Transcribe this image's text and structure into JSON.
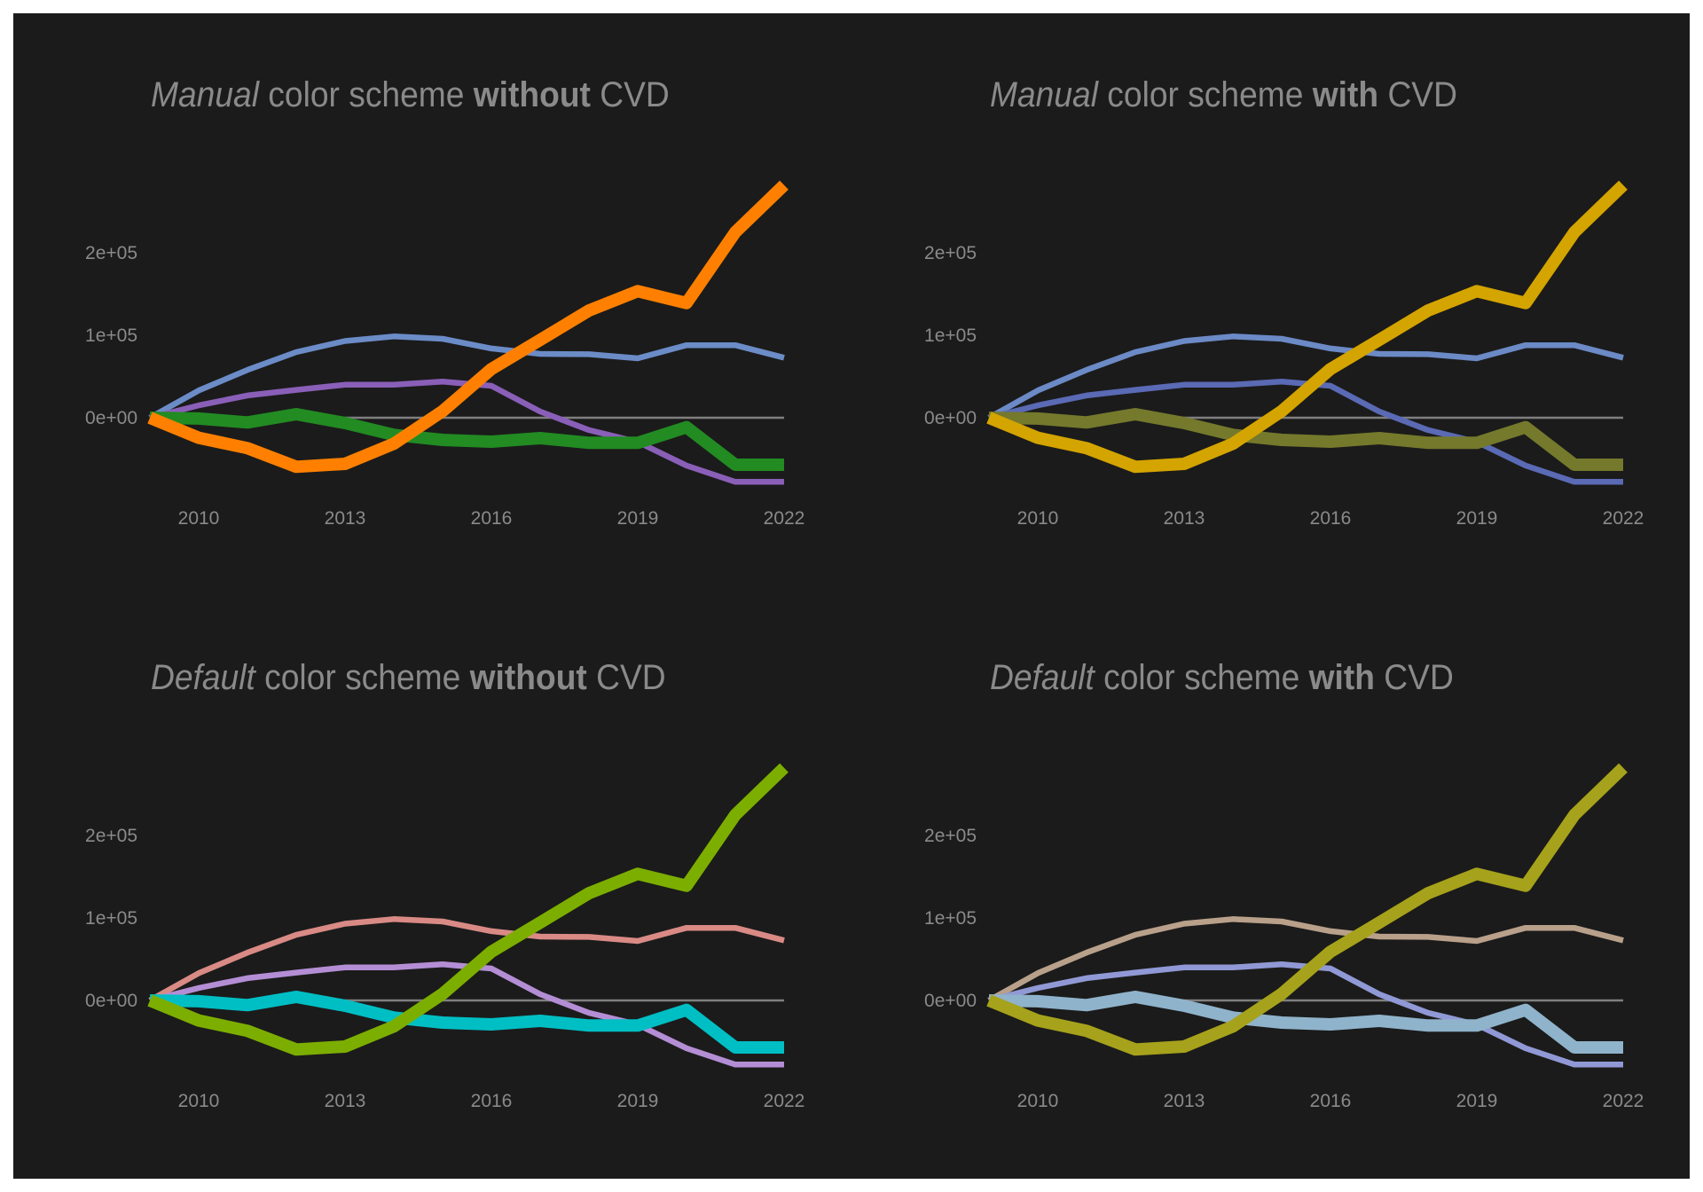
{
  "figure": {
    "background": "#1b1b1b",
    "text_color": "#8a8a8a",
    "zero_line_color": "#7f7f7f"
  },
  "chart_data": [
    {
      "type": "line",
      "title": {
        "lead": "Manual",
        "mid": " color scheme ",
        "emph": "without",
        "tail": " CVD"
      },
      "position": "top-left",
      "xlabel": "",
      "ylabel": "",
      "xlim": [
        2009,
        2022
      ],
      "ylim": [
        -80000,
        290000
      ],
      "x_ticks": [
        2010,
        2013,
        2016,
        2019,
        2022
      ],
      "x_tick_labels": [
        "2010",
        "2013",
        "2016",
        "2019",
        "2022"
      ],
      "y_ticks": [
        0,
        100000,
        200000
      ],
      "y_tick_labels": [
        "0e+00",
        "1e+05",
        "2e+05"
      ],
      "grid": false,
      "reference_line": 0,
      "legend": "none",
      "x": [
        2009,
        2010,
        2011,
        2012,
        2013,
        2014,
        2015,
        2016,
        2017,
        2018,
        2019,
        2020,
        2021,
        2022
      ],
      "series": [
        {
          "name": "series-a",
          "color": "#6b8cc7",
          "emphasis": false,
          "values": [
            0,
            33000,
            58000,
            79600,
            93000,
            98600,
            95700,
            84000,
            77400,
            77000,
            72000,
            88000,
            88000,
            72800
          ]
        },
        {
          "name": "series-b",
          "color": "#8a5fb8",
          "emphasis": false,
          "values": [
            0,
            15000,
            27000,
            33800,
            40000,
            40000,
            43800,
            38700,
            7500,
            -15000,
            -29400,
            -58000,
            -77700,
            -77700
          ]
        },
        {
          "name": "series-c",
          "color": "#228b22",
          "emphasis": true,
          "values": [
            0,
            -1000,
            -5700,
            4300,
            -6500,
            -20700,
            -26900,
            -29000,
            -24700,
            -30400,
            -30400,
            -11500,
            -57000,
            -57000
          ]
        },
        {
          "name": "series-d",
          "color": "#ff8000",
          "emphasis": true,
          "values": [
            0,
            -24300,
            -36900,
            -59500,
            -55900,
            -31500,
            8000,
            59000,
            94300,
            130000,
            153400,
            139000,
            225000,
            282000
          ]
        }
      ]
    },
    {
      "type": "line",
      "title": {
        "lead": "Manual",
        "mid": " color scheme ",
        "emph": "with",
        "tail": " CVD"
      },
      "position": "top-right",
      "xlabel": "",
      "ylabel": "",
      "xlim": [
        2009,
        2022
      ],
      "ylim": [
        -80000,
        290000
      ],
      "x_ticks": [
        2010,
        2013,
        2016,
        2019,
        2022
      ],
      "x_tick_labels": [
        "2010",
        "2013",
        "2016",
        "2019",
        "2022"
      ],
      "y_ticks": [
        0,
        100000,
        200000
      ],
      "y_tick_labels": [
        "0e+00",
        "1e+05",
        "2e+05"
      ],
      "grid": false,
      "reference_line": 0,
      "legend": "none",
      "x": [
        2009,
        2010,
        2011,
        2012,
        2013,
        2014,
        2015,
        2016,
        2017,
        2018,
        2019,
        2020,
        2021,
        2022
      ],
      "series": [
        {
          "name": "series-a",
          "color": "#6b8ac6",
          "emphasis": false,
          "values": [
            0,
            33000,
            58000,
            79600,
            93000,
            98600,
            95700,
            84000,
            77400,
            77000,
            72000,
            88000,
            88000,
            72800
          ]
        },
        {
          "name": "series-b",
          "color": "#5a6ab4",
          "emphasis": false,
          "values": [
            0,
            15000,
            27000,
            33800,
            40000,
            40000,
            43800,
            38700,
            7500,
            -15000,
            -29400,
            -58000,
            -77700,
            -77700
          ]
        },
        {
          "name": "series-c",
          "color": "#74792c",
          "emphasis": true,
          "values": [
            0,
            -1000,
            -5700,
            4300,
            -6500,
            -20700,
            -26900,
            -29000,
            -24700,
            -30400,
            -30400,
            -11500,
            -57000,
            -57000
          ]
        },
        {
          "name": "series-d",
          "color": "#d4a400",
          "emphasis": true,
          "values": [
            0,
            -24300,
            -36900,
            -59500,
            -55900,
            -31500,
            8000,
            59000,
            94300,
            130000,
            153400,
            139000,
            225000,
            282000
          ]
        }
      ]
    },
    {
      "type": "line",
      "title": {
        "lead": "Default",
        "mid": " color scheme ",
        "emph": "without",
        "tail": " CVD"
      },
      "position": "bottom-left",
      "xlabel": "",
      "ylabel": "",
      "xlim": [
        2009,
        2022
      ],
      "ylim": [
        -80000,
        290000
      ],
      "x_ticks": [
        2010,
        2013,
        2016,
        2019,
        2022
      ],
      "x_tick_labels": [
        "2010",
        "2013",
        "2016",
        "2019",
        "2022"
      ],
      "y_ticks": [
        0,
        100000,
        200000
      ],
      "y_tick_labels": [
        "0e+00",
        "1e+05",
        "2e+05"
      ],
      "grid": false,
      "reference_line": 0,
      "legend": "none",
      "x": [
        2009,
        2010,
        2011,
        2012,
        2013,
        2014,
        2015,
        2016,
        2017,
        2018,
        2019,
        2020,
        2021,
        2022
      ],
      "series": [
        {
          "name": "series-a",
          "color": "#d98a85",
          "emphasis": false,
          "values": [
            0,
            33000,
            58000,
            79600,
            93000,
            98600,
            95700,
            84000,
            77400,
            77000,
            72000,
            88000,
            88000,
            72800
          ]
        },
        {
          "name": "series-b",
          "color": "#b48ed5",
          "emphasis": false,
          "values": [
            0,
            15000,
            27000,
            33800,
            40000,
            40000,
            43800,
            38700,
            7500,
            -15000,
            -29400,
            -58000,
            -77700,
            -77700
          ]
        },
        {
          "name": "series-c",
          "color": "#00bfc4",
          "emphasis": true,
          "values": [
            0,
            -1000,
            -5700,
            4300,
            -6500,
            -20700,
            -26900,
            -29000,
            -24700,
            -30400,
            -30400,
            -11500,
            -57000,
            -57000
          ]
        },
        {
          "name": "series-d",
          "color": "#7cae00",
          "emphasis": true,
          "values": [
            0,
            -24300,
            -36900,
            -59500,
            -55900,
            -31500,
            8000,
            59000,
            94300,
            130000,
            153400,
            139000,
            225000,
            282000
          ]
        }
      ]
    },
    {
      "type": "line",
      "title": {
        "lead": "Default",
        "mid": " color scheme ",
        "emph": "with",
        "tail": " CVD"
      },
      "position": "bottom-right",
      "xlabel": "",
      "ylabel": "",
      "xlim": [
        2009,
        2022
      ],
      "ylim": [
        -80000,
        290000
      ],
      "x_ticks": [
        2010,
        2013,
        2016,
        2019,
        2022
      ],
      "x_tick_labels": [
        "2010",
        "2013",
        "2016",
        "2019",
        "2022"
      ],
      "y_ticks": [
        0,
        100000,
        200000
      ],
      "y_tick_labels": [
        "0e+00",
        "1e+05",
        "2e+05"
      ],
      "grid": false,
      "reference_line": 0,
      "legend": "none",
      "x": [
        2009,
        2010,
        2011,
        2012,
        2013,
        2014,
        2015,
        2016,
        2017,
        2018,
        2019,
        2020,
        2021,
        2022
      ],
      "series": [
        {
          "name": "series-a",
          "color": "#b9a08a",
          "emphasis": false,
          "values": [
            0,
            33000,
            58000,
            79600,
            93000,
            98600,
            95700,
            84000,
            77400,
            77000,
            72000,
            88000,
            88000,
            72800
          ]
        },
        {
          "name": "series-b",
          "color": "#9099d5",
          "emphasis": false,
          "values": [
            0,
            15000,
            27000,
            33800,
            40000,
            40000,
            43800,
            38700,
            7500,
            -15000,
            -29400,
            -58000,
            -77700,
            -77700
          ]
        },
        {
          "name": "series-c",
          "color": "#8fb3cb",
          "emphasis": true,
          "values": [
            0,
            -1000,
            -5700,
            4300,
            -6500,
            -20700,
            -26900,
            -29000,
            -24700,
            -30400,
            -30400,
            -11500,
            -57000,
            -57000
          ]
        },
        {
          "name": "series-d",
          "color": "#a6a21b",
          "emphasis": true,
          "values": [
            0,
            -24300,
            -36900,
            -59500,
            -55900,
            -31500,
            8000,
            59000,
            94300,
            130000,
            153400,
            139000,
            225000,
            282000
          ]
        }
      ]
    }
  ]
}
